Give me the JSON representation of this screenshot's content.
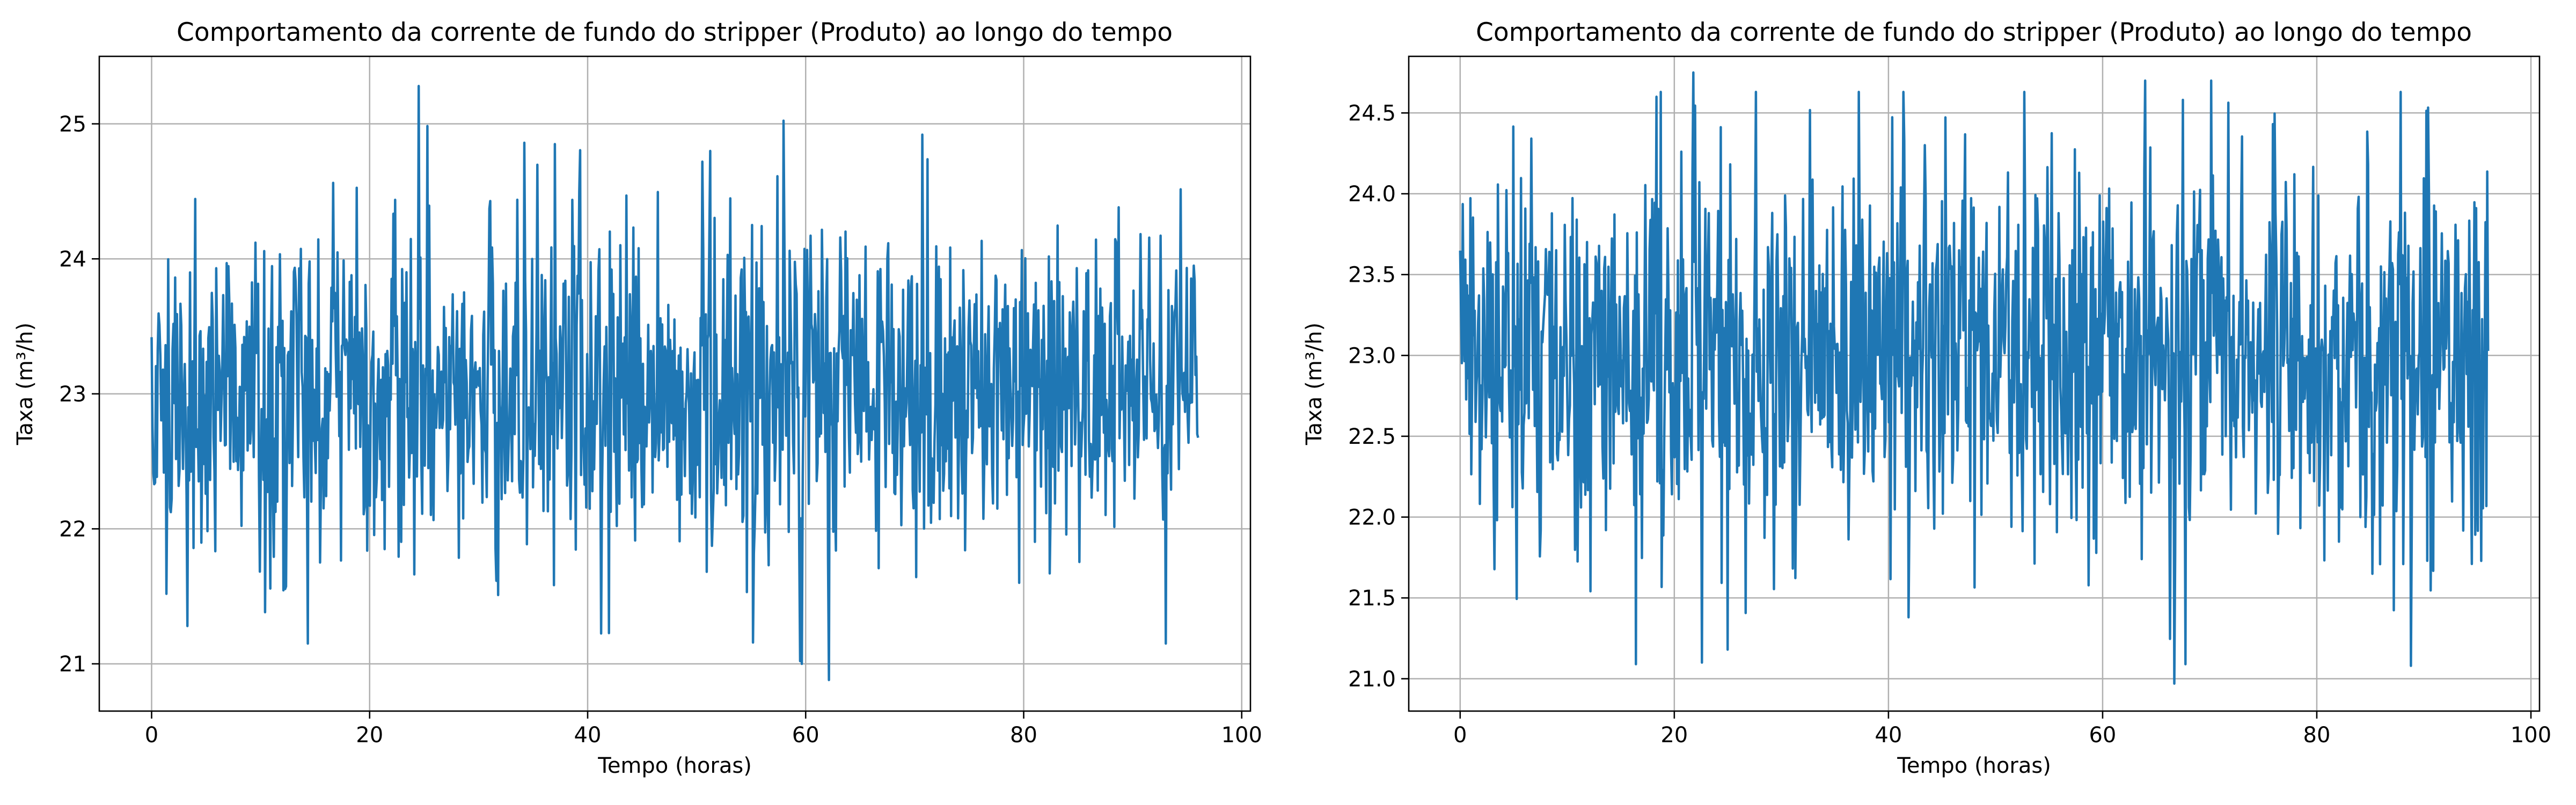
{
  "chart_data": [
    {
      "type": "line",
      "title": "Comportamento da corrente de fundo do stripper (Produto) ao longo do tempo",
      "xlabel": "Tempo (horas)",
      "ylabel": "Taxa (m³/h)",
      "xlim": [
        -4.8,
        100.8
      ],
      "ylim": [
        20.65,
        25.5
      ],
      "x_ticks": [
        0,
        20,
        40,
        60,
        80,
        100
      ],
      "x_tick_labels": [
        "0",
        "20",
        "40",
        "60",
        "80",
        "100"
      ],
      "y_ticks": [
        21,
        22,
        23,
        24,
        25
      ],
      "y_tick_labels": [
        "21",
        "22",
        "23",
        "24",
        "25"
      ],
      "grid": true,
      "legend": "none",
      "color": "#1f77b4",
      "x_range": [
        0,
        96
      ],
      "n_points": 1200,
      "mean": 23.0,
      "stats_range": [
        20.88,
        25.28
      ],
      "extremes": [
        {
          "x": 24.5,
          "y": 25.28
        },
        {
          "x": 70.7,
          "y": 24.92
        },
        {
          "x": 34.2,
          "y": 24.86
        },
        {
          "x": 37.0,
          "y": 24.85
        },
        {
          "x": 50.5,
          "y": 24.72
        },
        {
          "x": 59.5,
          "y": 21.02
        },
        {
          "x": 62.1,
          "y": 20.88
        },
        {
          "x": 14.3,
          "y": 21.15
        },
        {
          "x": 3.3,
          "y": 21.28
        },
        {
          "x": 93.0,
          "y": 21.15
        }
      ]
    },
    {
      "type": "line",
      "title": "Comportamento da corrente de fundo do stripper (Produto) ao longo do tempo",
      "xlabel": "Tempo (horas)",
      "ylabel": "Taxa (m³/h)",
      "xlim": [
        -4.8,
        100.8
      ],
      "ylim": [
        20.8,
        24.85
      ],
      "x_ticks": [
        0,
        20,
        40,
        60,
        80,
        100
      ],
      "x_tick_labels": [
        "0",
        "20",
        "40",
        "60",
        "80",
        "100"
      ],
      "y_ticks": [
        21.0,
        21.5,
        22.0,
        22.5,
        23.0,
        23.5,
        24.0,
        24.5
      ],
      "y_tick_labels": [
        "21.0",
        "21.5",
        "22.0",
        "22.5",
        "23.0",
        "23.5",
        "24.0",
        "24.5"
      ],
      "grid": true,
      "legend": "none",
      "color": "#1f77b4",
      "x_range": [
        0,
        96
      ],
      "n_points": 1200,
      "mean": 23.0,
      "stats_range": [
        20.97,
        24.75
      ],
      "extremes": [
        {
          "x": 21.8,
          "y": 24.75
        },
        {
          "x": 18.3,
          "y": 24.6
        },
        {
          "x": 64.0,
          "y": 24.7
        },
        {
          "x": 70.1,
          "y": 24.7
        },
        {
          "x": 66.7,
          "y": 20.97
        },
        {
          "x": 22.6,
          "y": 21.1
        },
        {
          "x": 88.8,
          "y": 21.08
        },
        {
          "x": 25.0,
          "y": 21.18
        }
      ]
    }
  ]
}
